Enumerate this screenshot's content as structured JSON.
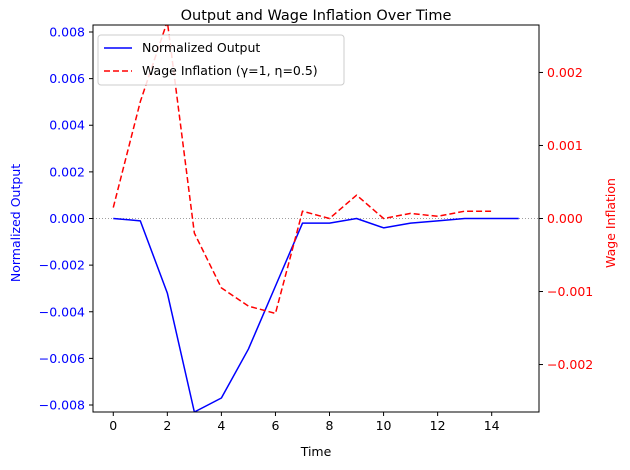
{
  "chart_data": {
    "type": "line",
    "title": "Output and Wage Inflation Over Time",
    "xlabel": "Time",
    "ylabel_left": "Normalized Output",
    "ylabel_right": "Wage Inflation",
    "xlim": [
      -0.75,
      15.75
    ],
    "ylim_left": [
      -0.0083,
      0.0083
    ],
    "ylim_right": [
      -0.00265,
      0.00265
    ],
    "x_ticks": [
      0,
      2,
      4,
      6,
      8,
      10,
      12,
      14
    ],
    "x_tick_labels": [
      "0",
      "2",
      "4",
      "6",
      "8",
      "10",
      "12",
      "14"
    ],
    "y_left_ticks": [
      -0.008,
      -0.006,
      -0.004,
      -0.002,
      0,
      0.002,
      0.004,
      0.006,
      0.008
    ],
    "y_left_tick_labels": [
      "−0.008",
      "−0.006",
      "−0.004",
      "−0.002",
      "0.000",
      "0.002",
      "0.004",
      "0.006",
      "0.008"
    ],
    "y_right_ticks": [
      -0.002,
      -0.001,
      0,
      0.001,
      0.002
    ],
    "y_right_tick_labels": [
      "−0.002",
      "−0.001",
      "0.000",
      "0.001",
      "0.002"
    ],
    "zero_reference_line": true,
    "grid": false,
    "legend_placement": "upper-left",
    "series": [
      {
        "name": "Normalized Output",
        "axis": "left",
        "color": "#0000ff",
        "style": "solid",
        "x": [
          0,
          1,
          2,
          3,
          4,
          5,
          6,
          7,
          8,
          9,
          10,
          11,
          12,
          13,
          14,
          15
        ],
        "y": [
          0.0,
          -0.0001,
          -0.0032,
          -0.0083,
          -0.0077,
          -0.0056,
          -0.0029,
          -0.0002,
          -0.0002,
          0.0,
          -0.0004,
          -0.0002,
          -0.0001,
          0.0,
          0.0,
          0.0
        ]
      },
      {
        "name": "Wage Inflation (γ=1, η=0.5)",
        "axis": "right",
        "color": "#ff0000",
        "style": "dashed",
        "x": [
          0,
          1,
          2,
          3,
          4,
          5,
          6,
          7,
          8,
          9,
          10,
          11,
          12,
          13,
          14
        ],
        "y": [
          0.00015,
          0.0016,
          0.0027,
          -0.0002,
          -0.00095,
          -0.0012,
          -0.0013,
          0.0001,
          0.0,
          0.00032,
          0.0,
          7e-05,
          3e-05,
          0.0001,
          0.0001
        ]
      }
    ]
  },
  "colors": {
    "left_axis": "#0000ff",
    "right_axis": "#ff0000",
    "axes": "#000000",
    "zero_line": "#808080"
  }
}
